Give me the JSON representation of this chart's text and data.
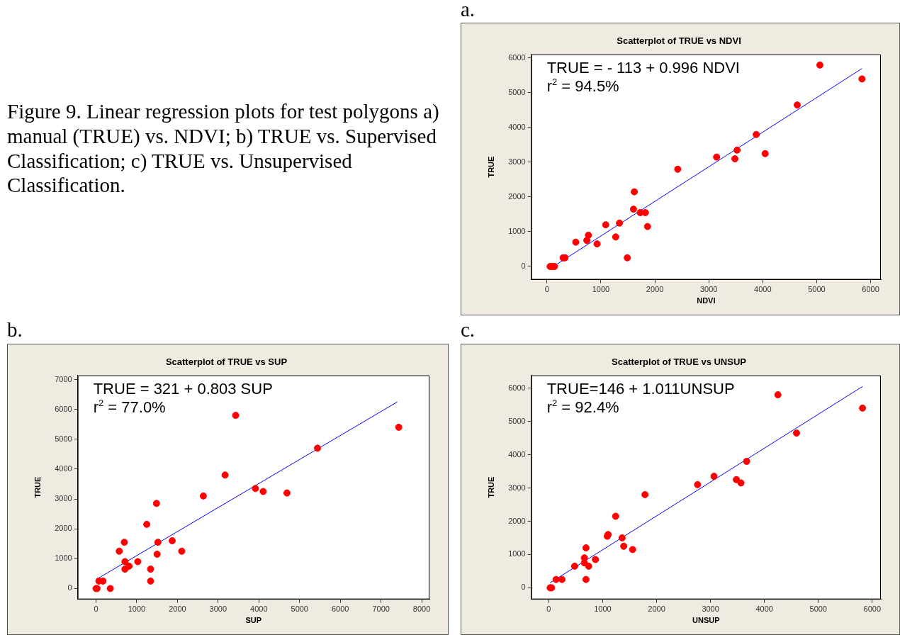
{
  "chart_data": [
    {
      "type": "scatter",
      "title": "Scatterplot of TRUE vs NDVI",
      "xlabel": "NDVI",
      "ylabel": "TRUE",
      "annotations": [
        "Figure 9.  Linear regression plots for test polygons a) manual (TRUE) vs. NDVI; b) TRUE vs. Supervised Classification; c) TRUE vs. Unsupervised Classification.",
        "a.",
        "TRUE = - 113 + 0.996 NDVI",
        "r$^{2}$ = 94.5%"
      ],
      "xlim": [
        -290,
        6190
      ],
      "ylim": [
        -380,
        6110
      ],
      "xticks": [
        0,
        1000,
        2000,
        3000,
        4000,
        5000,
        6000
      ],
      "yticks": [
        0,
        1000,
        2000,
        3000,
        4000,
        5000,
        6000
      ],
      "grid": false,
      "legend": false,
      "series": [
        {
          "type": "scatter",
          "marker": "circle",
          "color": "#ff0000",
          "x": [
            60,
            100,
            140,
            300,
            335,
            535,
            740,
            770,
            930,
            1090,
            1275,
            1345,
            1490,
            1605,
            1620,
            1730,
            1825,
            1865,
            2425,
            3145,
            3485,
            3525,
            3880,
            4045,
            4640,
            5060,
            5840
          ],
          "values": [
            0,
            0,
            0,
            250,
            250,
            700,
            750,
            900,
            650,
            1200,
            850,
            1250,
            250,
            1650,
            2150,
            1550,
            1550,
            1150,
            2800,
            3150,
            3100,
            3350,
            3800,
            3250,
            4650,
            5800,
            5400
          ]
        },
        {
          "type": "line",
          "marker": "none",
          "color": "#0000ff",
          "x": [
            170,
            5840
          ],
          "values": [
            50,
            5700
          ]
        }
      ]
    },
    {
      "type": "scatter",
      "title": "Scatterplot of TRUE vs SUP",
      "xlabel": "SUP",
      "ylabel": "TRUE",
      "annotations": [
        "b.",
        "TRUE = 321 + 0.803 SUP",
        "r$^{2}$ = 77.0%"
      ],
      "xlim": [
        -450,
        8190
      ],
      "ylim": [
        -360,
        7140
      ],
      "xticks": [
        0,
        1000,
        2000,
        3000,
        4000,
        5000,
        6000,
        7000,
        8000
      ],
      "yticks": [
        0,
        1000,
        2000,
        3000,
        4000,
        5000,
        6000,
        7000
      ],
      "grid": false,
      "legend": false,
      "series": [
        {
          "type": "scatter",
          "marker": "circle",
          "color": "#ff0000",
          "x": [
            0,
            25,
            70,
            170,
            350,
            570,
            695,
            710,
            710,
            810,
            1025,
            1245,
            1340,
            1340,
            1485,
            1500,
            1520,
            1870,
            2105,
            2635,
            3170,
            3430,
            3915,
            4105,
            4690,
            5440,
            7435
          ],
          "values": [
            0,
            0,
            250,
            250,
            0,
            1250,
            1550,
            900,
            650,
            750,
            900,
            2150,
            650,
            250,
            2850,
            1150,
            1550,
            1600,
            1250,
            3100,
            3800,
            5800,
            3350,
            3250,
            3200,
            4700,
            5400
          ]
        },
        {
          "type": "line",
          "marker": "none",
          "color": "#0000ff",
          "x": [
            0,
            7400
          ],
          "values": [
            300,
            6250
          ]
        }
      ]
    },
    {
      "type": "scatter",
      "title": "Scatterplot of TRUE vs UNSUP",
      "xlabel": "UNSUP",
      "ylabel": "TRUE",
      "annotations": [
        "c.",
        "TRUE=146 + 1.011UNSUP",
        "r$^{2}$ = 92.4%"
      ],
      "xlim": [
        -325,
        6160
      ],
      "ylim": [
        -345,
        6385
      ],
      "xticks": [
        0,
        1000,
        2000,
        3000,
        4000,
        5000,
        6000
      ],
      "yticks": [
        0,
        1000,
        2000,
        3000,
        4000,
        5000,
        6000
      ],
      "grid": false,
      "legend": false,
      "series": [
        {
          "type": "scatter",
          "marker": "circle",
          "color": "#ff0000",
          "x": [
            25,
            50,
            135,
            245,
            480,
            660,
            660,
            690,
            690,
            740,
            865,
            1085,
            1100,
            1240,
            1360,
            1390,
            1555,
            1785,
            2760,
            3065,
            3480,
            3565,
            3670,
            4250,
            4595,
            5820
          ],
          "values": [
            0,
            0,
            250,
            250,
            650,
            900,
            750,
            1200,
            250,
            650,
            850,
            1550,
            1600,
            2150,
            1500,
            1250,
            1150,
            2800,
            3100,
            3350,
            3250,
            3150,
            3800,
            5800,
            4650,
            5400
          ]
        },
        {
          "type": "line",
          "marker": "none",
          "color": "#0000ff",
          "x": [
            25,
            5820
          ],
          "values": [
            150,
            6050
          ]
        }
      ]
    }
  ]
}
